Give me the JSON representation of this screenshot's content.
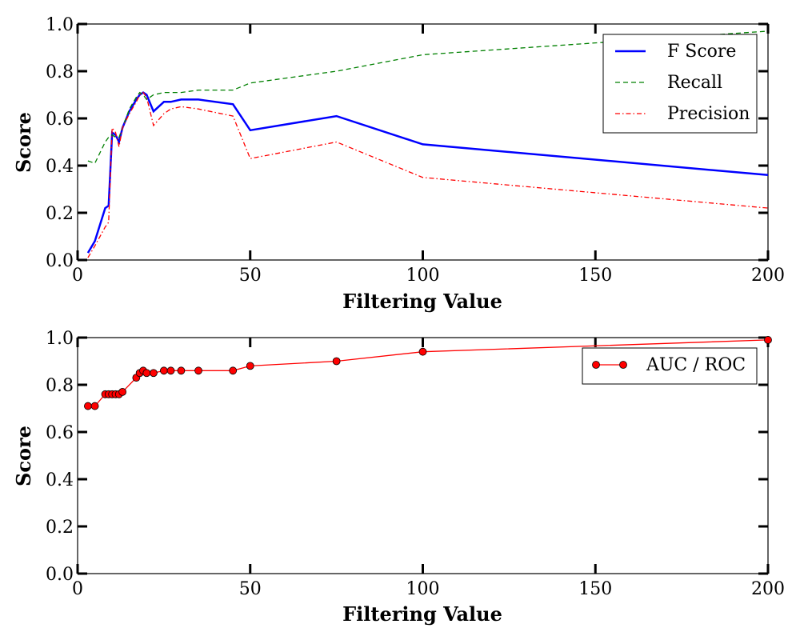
{
  "chart_data": [
    {
      "type": "line",
      "xlabel": "Filtering Value",
      "ylabel": "Score",
      "xlim": [
        0,
        200
      ],
      "ylim": [
        0.0,
        1.0
      ],
      "xticks": [
        "0",
        "50",
        "100",
        "150",
        "200"
      ],
      "yticks": [
        "0.0",
        "0.2",
        "0.4",
        "0.6",
        "0.8",
        "1.0"
      ],
      "grid": false,
      "legend_position": "top-right",
      "series": [
        {
          "name": "F Score",
          "color": "#0000ff",
          "style": "solid",
          "x": [
            3,
            5,
            8,
            9,
            10,
            11,
            12,
            13,
            15,
            17,
            18,
            19,
            20,
            22,
            25,
            27,
            30,
            35,
            45,
            50,
            75,
            100,
            200
          ],
          "y": [
            0.03,
            0.08,
            0.22,
            0.23,
            0.54,
            0.53,
            0.5,
            0.56,
            0.63,
            0.68,
            0.7,
            0.71,
            0.7,
            0.63,
            0.67,
            0.67,
            0.68,
            0.68,
            0.66,
            0.55,
            0.61,
            0.49,
            0.36
          ]
        },
        {
          "name": "Recall",
          "color": "#008000",
          "style": "dashed",
          "x": [
            3,
            5,
            8,
            9,
            10,
            11,
            12,
            13,
            15,
            17,
            18,
            19,
            20,
            22,
            25,
            27,
            30,
            35,
            45,
            50,
            75,
            100,
            200
          ],
          "y": [
            0.42,
            0.41,
            0.5,
            0.52,
            0.53,
            0.52,
            0.52,
            0.56,
            0.64,
            0.69,
            0.71,
            0.7,
            0.68,
            0.7,
            0.71,
            0.71,
            0.71,
            0.72,
            0.72,
            0.75,
            0.8,
            0.87,
            0.97
          ]
        },
        {
          "name": "Precision",
          "color": "#ff0000",
          "style": "dashdot",
          "x": [
            3,
            5,
            8,
            9,
            10,
            11,
            12,
            13,
            15,
            17,
            18,
            19,
            20,
            22,
            25,
            27,
            30,
            35,
            45,
            50,
            75,
            100,
            200
          ],
          "y": [
            0.01,
            0.06,
            0.14,
            0.16,
            0.56,
            0.54,
            0.48,
            0.56,
            0.62,
            0.67,
            0.7,
            0.71,
            0.69,
            0.57,
            0.62,
            0.64,
            0.65,
            0.64,
            0.61,
            0.43,
            0.5,
            0.35,
            0.22
          ]
        }
      ]
    },
    {
      "type": "line",
      "xlabel": "Filtering Value",
      "ylabel": "Score",
      "xlim": [
        0,
        200
      ],
      "ylim": [
        0.0,
        1.0
      ],
      "xticks": [
        "0",
        "50",
        "100",
        "150",
        "200"
      ],
      "yticks": [
        "0.0",
        "0.2",
        "0.4",
        "0.6",
        "0.8",
        "1.0"
      ],
      "grid": false,
      "legend_position": "top-right",
      "series": [
        {
          "name": "AUC / ROC",
          "color": "#ff0000",
          "style": "solid-markers",
          "x": [
            3,
            5,
            8,
            9,
            10,
            11,
            12,
            13,
            17,
            18,
            19,
            20,
            22,
            25,
            27,
            30,
            35,
            45,
            50,
            75,
            100,
            200
          ],
          "y": [
            0.71,
            0.71,
            0.76,
            0.76,
            0.76,
            0.76,
            0.76,
            0.77,
            0.83,
            0.85,
            0.86,
            0.85,
            0.85,
            0.86,
            0.86,
            0.86,
            0.86,
            0.86,
            0.88,
            0.9,
            0.94,
            0.99
          ]
        }
      ]
    }
  ]
}
